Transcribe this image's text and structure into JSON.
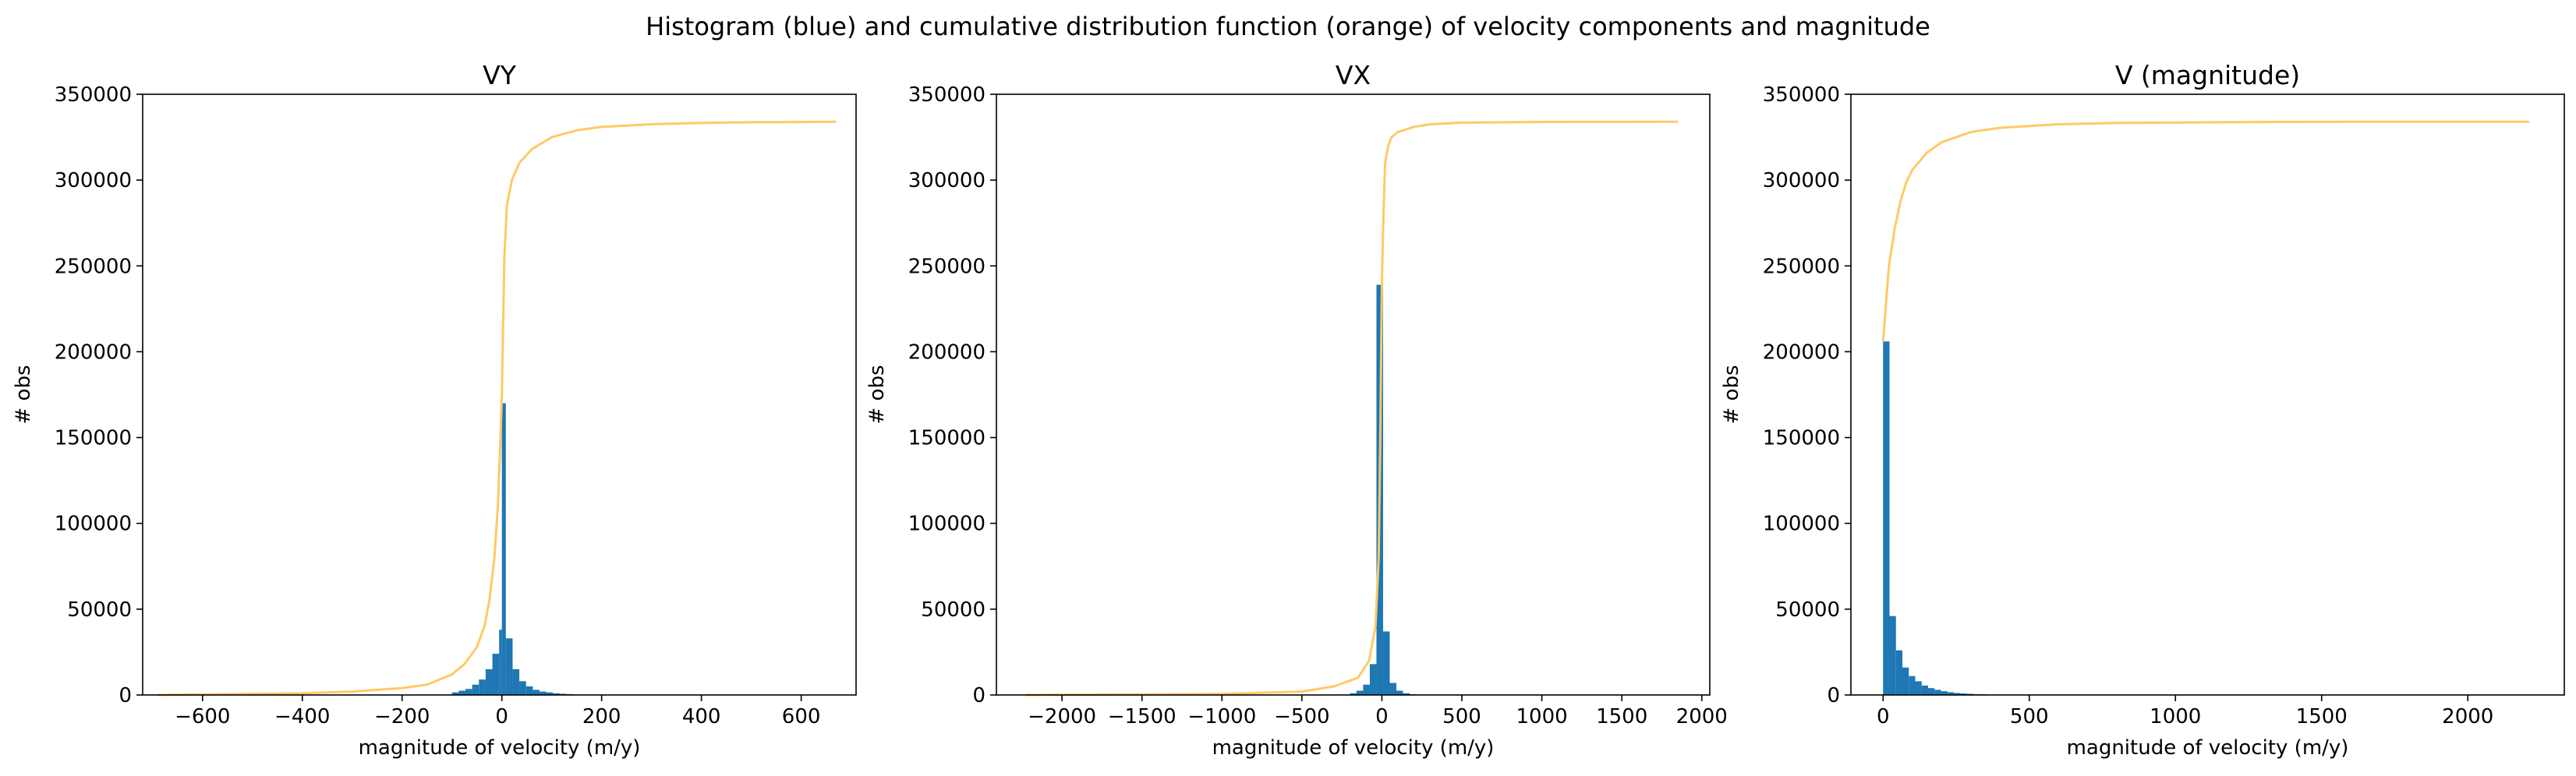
{
  "figure": {
    "suptitle": "Histogram (blue) and cumulative distribution function (orange) of velocity components and magnitude",
    "colors": {
      "histogram": "#1f77b4",
      "cdf": "#ffc966",
      "axes": "#000000",
      "background": "#ffffff"
    }
  },
  "chart_data": [
    {
      "type": "bar",
      "title": "VY",
      "xlabel": "magnitude of velocity (m/y)",
      "ylabel": "# obs",
      "xlim": [
        -720,
        710
      ],
      "ylim": [
        0,
        350000
      ],
      "xticks": [
        -600,
        -400,
        -200,
        0,
        200,
        400,
        600
      ],
      "xtick_labels": [
        "−600",
        "−400",
        "−200",
        "0",
        "200",
        "400",
        "600"
      ],
      "yticks": [
        0,
        50000,
        100000,
        150000,
        200000,
        250000,
        300000,
        350000
      ],
      "ytick_labels": [
        "0",
        "50000",
        "100000",
        "150000",
        "200000",
        "250000",
        "300000",
        "350000"
      ],
      "grid": false,
      "legend": "none",
      "histogram": {
        "bin_edges": [
          -100,
          -86.5,
          -73,
          -59.5,
          -46,
          -32.5,
          -19,
          -5.5,
          0,
          8,
          21.5,
          35,
          48.5,
          62,
          75.5,
          89,
          102.5,
          116,
          129.5,
          143
        ],
        "counts": [
          1500,
          2500,
          3500,
          6000,
          9000,
          15000,
          24000,
          38000,
          170000,
          33000,
          15000,
          8000,
          5000,
          3000,
          2000,
          1500,
          1000,
          700,
          500
        ]
      },
      "cdf": {
        "x": [
          -690,
          -400,
          -300,
          -200,
          -150,
          -100,
          -75,
          -50,
          -35,
          -25,
          -15,
          -8,
          -4,
          0,
          5,
          10,
          20,
          35,
          60,
          100,
          150,
          200,
          300,
          400,
          500,
          670
        ],
        "y": [
          0,
          1000,
          2000,
          4000,
          6000,
          12000,
          18000,
          28000,
          40000,
          55000,
          80000,
          110000,
          140000,
          175000,
          255000,
          285000,
          300000,
          310000,
          318000,
          325000,
          329000,
          331000,
          332500,
          333300,
          333700,
          334000
        ]
      }
    },
    {
      "type": "bar",
      "title": "VX",
      "xlabel": "magnitude of velocity (m/y)",
      "ylabel": "# obs",
      "xlim": [
        -2410,
        2050
      ],
      "ylim": [
        0,
        350000
      ],
      "xticks": [
        -2000,
        -1500,
        -1000,
        -500,
        0,
        500,
        1000,
        1500,
        2000
      ],
      "xtick_labels": [
        "−2000",
        "−1500",
        "−1000",
        "−500",
        "0",
        "500",
        "1000",
        "1500",
        "2000"
      ],
      "yticks": [
        0,
        50000,
        100000,
        150000,
        200000,
        250000,
        300000,
        350000
      ],
      "ytick_labels": [
        "0",
        "50000",
        "100000",
        "150000",
        "200000",
        "250000",
        "300000",
        "350000"
      ],
      "grid": false,
      "legend": "none",
      "histogram": {
        "bin_edges": [
          -200,
          -158.5,
          -117,
          -75.5,
          -34,
          7.5,
          49,
          90.5,
          132,
          173.5,
          215
        ],
        "counts": [
          1000,
          2500,
          6000,
          18000,
          239000,
          37000,
          7000,
          2500,
          1000,
          400
        ]
      },
      "cdf": {
        "x": [
          -2230,
          -1000,
          -500,
          -300,
          -150,
          -80,
          -40,
          -20,
          -10,
          0,
          10,
          20,
          40,
          60,
          100,
          200,
          300,
          500,
          1000,
          1850
        ],
        "y": [
          0,
          600,
          2000,
          5000,
          10000,
          20000,
          40000,
          80000,
          150000,
          240000,
          280000,
          310000,
          320000,
          325000,
          328000,
          331000,
          332500,
          333500,
          333900,
          334000
        ]
      }
    },
    {
      "type": "bar",
      "title": "V (magnitude)",
      "xlabel": "magnitude of velocity (m/y)",
      "ylabel": "# obs",
      "xlim": [
        -110,
        2330
      ],
      "ylim": [
        0,
        350000
      ],
      "xticks": [
        0,
        500,
        1000,
        1500,
        2000
      ],
      "xtick_labels": [
        "0",
        "500",
        "1000",
        "1500",
        "2000"
      ],
      "yticks": [
        0,
        50000,
        100000,
        150000,
        200000,
        250000,
        300000,
        350000
      ],
      "ytick_labels": [
        "0",
        "50000",
        "100000",
        "150000",
        "200000",
        "250000",
        "300000",
        "350000"
      ],
      "grid": false,
      "legend": "none",
      "histogram": {
        "bin_edges": [
          0,
          22,
          44,
          66,
          88,
          110,
          132,
          154,
          176,
          198,
          220,
          242,
          264,
          286,
          308,
          330,
          352
        ],
        "counts": [
          206000,
          46000,
          26000,
          16000,
          11000,
          8000,
          5500,
          4000,
          3000,
          2200,
          1600,
          1200,
          900,
          700,
          500,
          400
        ]
      },
      "cdf": {
        "x": [
          0,
          20,
          40,
          60,
          80,
          100,
          150,
          200,
          300,
          400,
          600,
          800,
          1200,
          1600,
          2210
        ],
        "y": [
          206000,
          250000,
          272000,
          288000,
          299000,
          306000,
          316000,
          322000,
          328000,
          330500,
          332500,
          333300,
          333800,
          334000,
          334000
        ]
      }
    }
  ]
}
